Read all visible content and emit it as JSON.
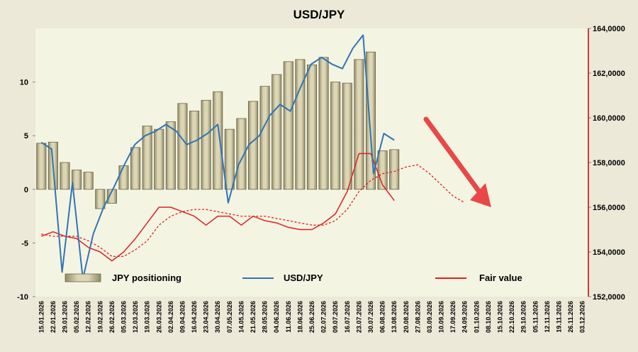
{
  "chart_data": {
    "type": "bar",
    "title": "USD/JPY",
    "colors": {
      "bar_fill": "#c8c09a",
      "bar_stroke": "#6b6648",
      "usdjpy_line": "#2e75b6",
      "fair_value_line": "#e02020",
      "arrow": "#e84848",
      "plot_bg": "#f4f4e2",
      "frame_bg": "#ece9d8"
    },
    "x_dates": [
      "15.01.2026",
      "22.01.2026",
      "29.01.2026",
      "05.02.2026",
      "12.02.2026",
      "19.02.2026",
      "26.02.2026",
      "05.03.2026",
      "12.03.2026",
      "19.03.2026",
      "26.03.2026",
      "02.04.2026",
      "09.04.2026",
      "16.04.2026",
      "23.04.2026",
      "30.04.2026",
      "07.05.2026",
      "14.05.2026",
      "21.05.2026",
      "28.05.2026",
      "04.06.2026",
      "11.06.2026",
      "18.06.2026",
      "25.06.2026",
      "02.07.2026",
      "09.07.2026",
      "16.07.2026",
      "23.07.2026",
      "30.07.2026",
      "06.08.2026",
      "13.08.2026",
      "20.08.2026",
      "27.08.2026",
      "03.09.2026",
      "10.09.2026",
      "17.09.2026",
      "24.09.2026",
      "01.10.2026",
      "08.10.2026",
      "15.10.2026",
      "22.10.2026",
      "29.10.2026",
      "05.11.2026",
      "12.11.2026",
      "19.11.2026",
      "26.11.2026",
      "03.12.2026"
    ],
    "y_left": {
      "min": -10,
      "max": 15,
      "ticks": [
        "-10",
        "-5",
        "0",
        "5",
        "10"
      ]
    },
    "y_right": {
      "min": 152000,
      "max": 164000,
      "ticks": [
        "152,0000",
        "154,0000",
        "156,0000",
        "158,0000",
        "160,0000",
        "162,0000",
        "164,0000"
      ]
    },
    "series": [
      {
        "name": "JPY positioning",
        "type": "bar",
        "axis": "left",
        "values": [
          4.3,
          4.4,
          2.5,
          1.8,
          1.6,
          -1.8,
          -1.3,
          2.2,
          3.9,
          5.9,
          5.6,
          6.3,
          8.0,
          7.3,
          8.3,
          9.1,
          5.6,
          6.6,
          8.2,
          9.6,
          10.7,
          11.9,
          12.1,
          11.6,
          12.3,
          10.0,
          9.9,
          12.1,
          12.8,
          3.6,
          3.7
        ]
      },
      {
        "name": "USD/JPY",
        "type": "line",
        "axis": "right",
        "values": [
          158.9,
          158.6,
          153.1,
          157.1,
          152.8,
          154.8,
          156.0,
          156.9,
          157.9,
          158.8,
          159.2,
          159.4,
          159.7,
          159.4,
          158.8,
          159.0,
          159.3,
          159.7,
          156.2,
          157.9,
          158.8,
          159.2,
          160.1,
          160.6,
          160.3,
          161.4,
          162.4,
          162.7,
          162.4,
          162.2,
          163.1,
          163.7,
          157.5,
          159.3,
          159.0
        ]
      },
      {
        "name": "Fair value",
        "type": "line",
        "axis": "right",
        "values": [
          154.7,
          154.9,
          154.7,
          154.6,
          154.2,
          154.0,
          153.6,
          154.0,
          154.6,
          155.3,
          156.0,
          156.0,
          155.8,
          155.6,
          155.2,
          155.6,
          155.6,
          155.2,
          155.6,
          155.4,
          155.3,
          155.1,
          155.0,
          155.0,
          155.3,
          155.7,
          156.7,
          158.4,
          158.4,
          157.0,
          156.3
        ]
      },
      {
        "name": "Fair value (projection)",
        "type": "dashed-line",
        "axis": "right",
        "values": [
          154.8,
          154.7,
          154.7,
          154.7,
          154.5,
          154.2,
          153.8,
          153.8,
          154.1,
          154.5,
          155.2,
          155.6,
          155.8,
          155.9,
          155.9,
          155.8,
          155.7,
          155.6,
          155.6,
          155.6,
          155.5,
          155.4,
          155.3,
          155.2,
          155.2,
          155.4,
          155.9,
          156.7,
          157.2,
          157.5,
          157.6,
          157.8,
          157.9,
          157.5,
          157.0,
          156.5,
          156.2
        ]
      }
    ],
    "legend": {
      "position": "bottom-left",
      "items": [
        "JPY positioning",
        "USD/JPY",
        "Fair value"
      ]
    },
    "annotations": [
      {
        "type": "arrow",
        "direction": "down-right",
        "from_date": "03.09.2026",
        "to_date": "08.10.2026"
      }
    ]
  }
}
